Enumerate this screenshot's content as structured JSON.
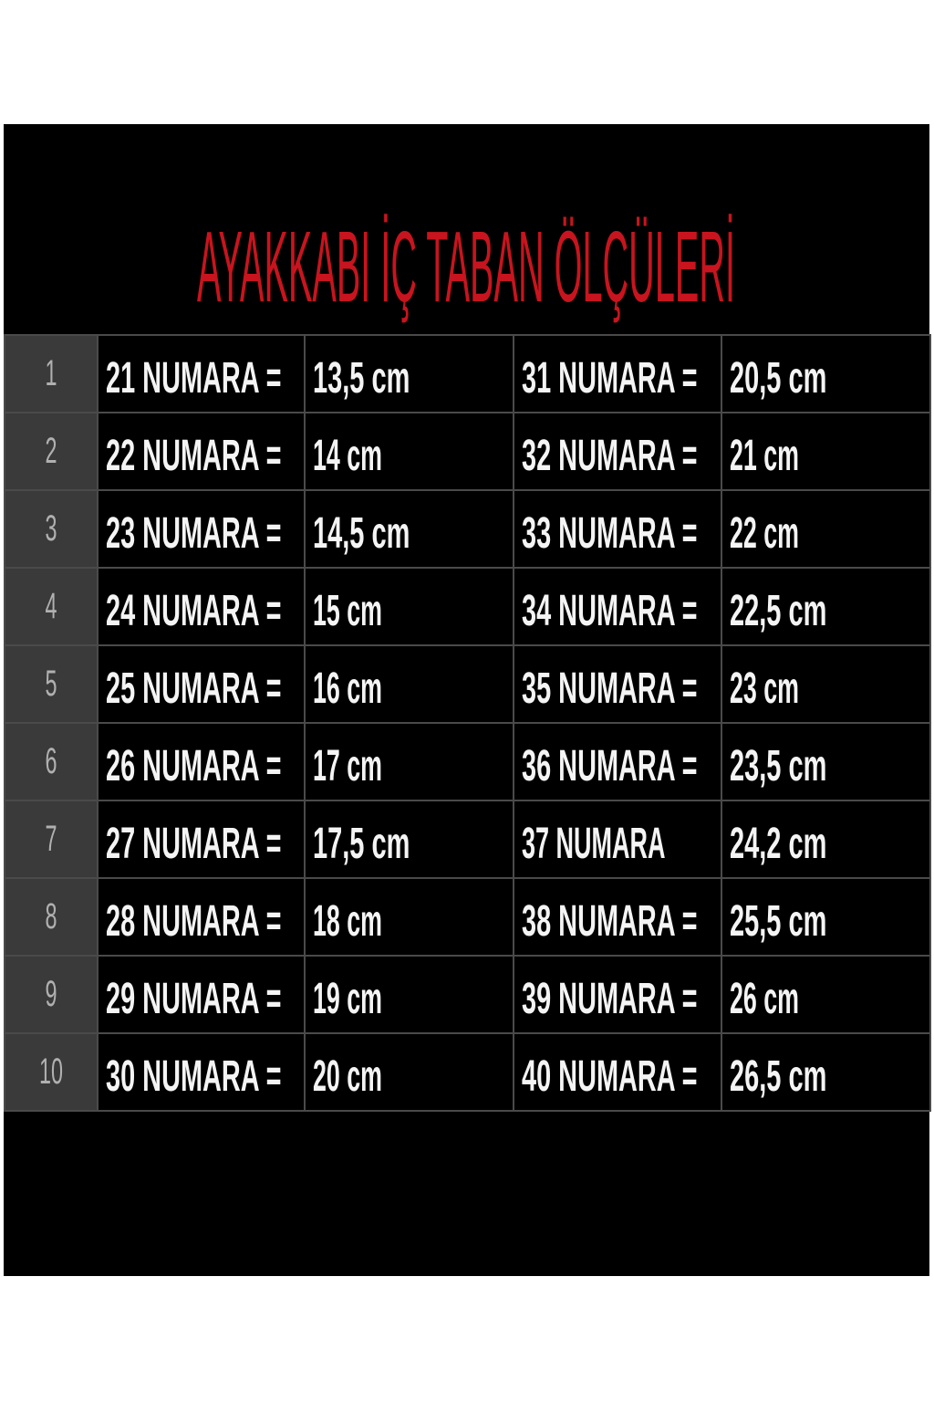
{
  "title": "AYAKKABI İÇ TABAN ÖLÇÜLERİ",
  "colors": {
    "title": "#c8141e",
    "background": "#000000",
    "index_cell": "#3a3a3a",
    "grid": "#4a4a4a"
  },
  "rows": [
    {
      "index": "1",
      "size_a": "21 NUMARA =",
      "length_a": "13,5 cm",
      "size_b": "31 NUMARA =",
      "length_b": "20,5 cm"
    },
    {
      "index": "2",
      "size_a": "22 NUMARA =",
      "length_a": "14 cm",
      "size_b": "32 NUMARA =",
      "length_b": "21 cm"
    },
    {
      "index": "3",
      "size_a": "23 NUMARA =",
      "length_a": "14,5 cm",
      "size_b": "33 NUMARA =",
      "length_b": "22 cm"
    },
    {
      "index": "4",
      "size_a": "24 NUMARA =",
      "length_a": "15 cm",
      "size_b": "34 NUMARA =",
      "length_b": "22,5 cm"
    },
    {
      "index": "5",
      "size_a": "25 NUMARA =",
      "length_a": "16 cm",
      "size_b": "35 NUMARA =",
      "length_b": "23 cm"
    },
    {
      "index": "6",
      "size_a": "26 NUMARA =",
      "length_a": "17 cm",
      "size_b": "36 NUMARA =",
      "length_b": "23,5 cm"
    },
    {
      "index": "7",
      "size_a": "27 NUMARA =",
      "length_a": "17,5 cm",
      "size_b": "37 NUMARA",
      "length_b": "24,2 cm"
    },
    {
      "index": "8",
      "size_a": "28 NUMARA =",
      "length_a": "18 cm",
      "size_b": "38 NUMARA =",
      "length_b": "25,5 cm"
    },
    {
      "index": "9",
      "size_a": "29 NUMARA =",
      "length_a": "19 cm",
      "size_b": "39 NUMARA =",
      "length_b": "26 cm"
    },
    {
      "index": "10",
      "size_a": "30 NUMARA =",
      "length_a": "20 cm",
      "size_b": "40 NUMARA =",
      "length_b": "26,5 cm"
    }
  ]
}
